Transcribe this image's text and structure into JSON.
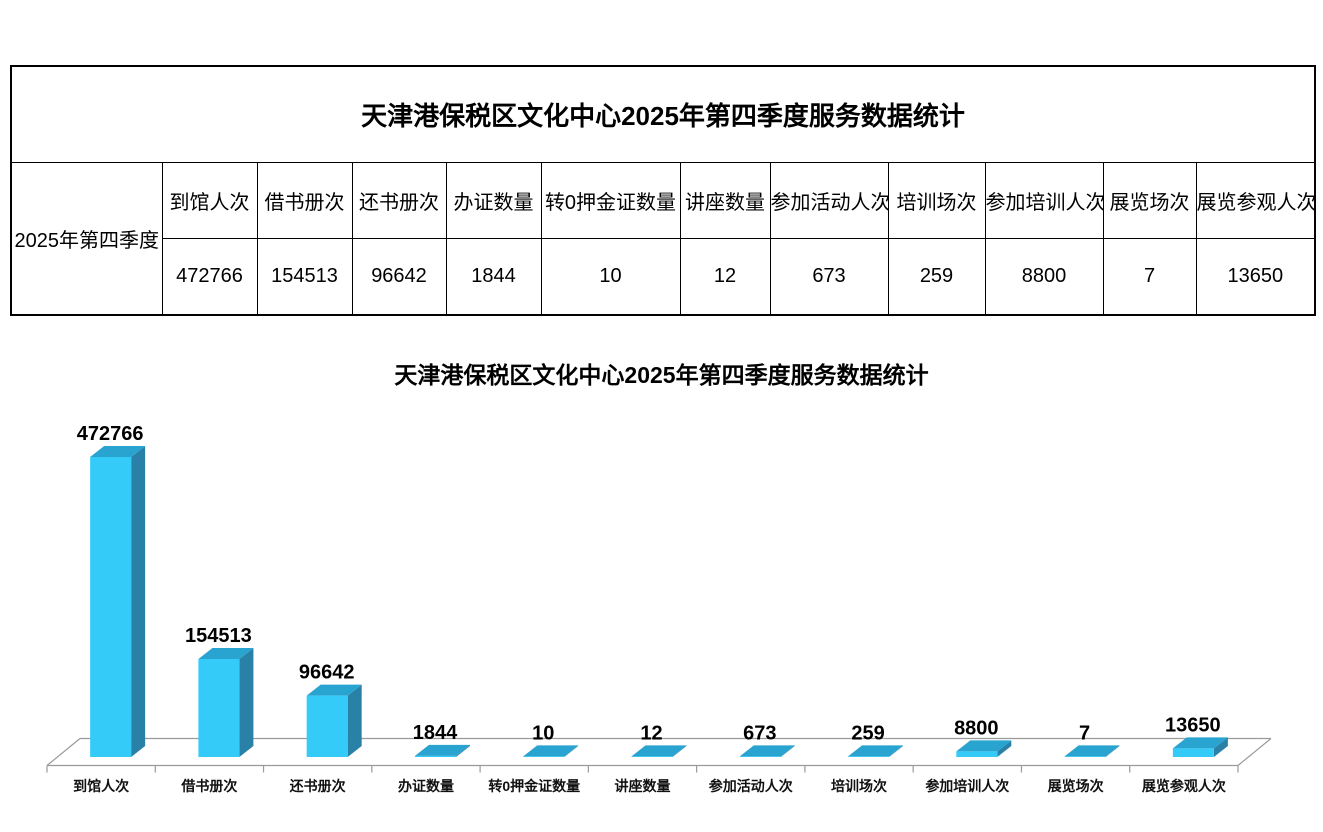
{
  "table": {
    "title": "天津港保税区文化中心2025年第四季度服务数据统计",
    "row_header": "2025年第四季度",
    "columns": [
      {
        "label": "到馆人次",
        "value": "472766"
      },
      {
        "label": "借书册次",
        "value": "154513"
      },
      {
        "label": "还书册次",
        "value": "96642"
      },
      {
        "label": "办证数量",
        "value": "1844"
      },
      {
        "label": "转0押金证数量",
        "value": "10"
      },
      {
        "label": "讲座数量",
        "value": "12"
      },
      {
        "label": "参加活动人次",
        "value": "673"
      },
      {
        "label": "培训场次",
        "value": "259"
      },
      {
        "label": "参加培训人次",
        "value": "8800"
      },
      {
        "label": "展览场次",
        "value": "7"
      },
      {
        "label": "展览参观人次",
        "value": "13650"
      }
    ]
  },
  "chart_data": {
    "type": "bar",
    "style": "3d-column",
    "title": "天津港保税区文化中心2025年第四季度服务数据统计",
    "categories": [
      "到馆人次",
      "借书册次",
      "还书册次",
      "办证数量",
      "转0押金证数量",
      "讲座数量",
      "参加活动人次",
      "培训场次",
      "参加培训人次",
      "展览场次",
      "展览参观人次"
    ],
    "values": [
      472766,
      154513,
      96642,
      1844,
      10,
      12,
      673,
      259,
      8800,
      7,
      13650
    ],
    "data_labels": [
      "472766",
      "154513",
      "96642",
      "1844",
      "10",
      "12",
      "673",
      "259",
      "8800",
      "7",
      "13650"
    ],
    "series_name": "2025年第四季度",
    "xlabel": "",
    "ylabel": "",
    "ylim": [
      0,
      500000
    ],
    "axes_visible": false,
    "grid": false,
    "legend_position": "none",
    "colors": {
      "bar_front": "#35CBF8",
      "bar_top": "#29A3CF",
      "bar_side": "#2A81A8",
      "axis_line": "#9a9a9a",
      "label": "#000000"
    }
  }
}
